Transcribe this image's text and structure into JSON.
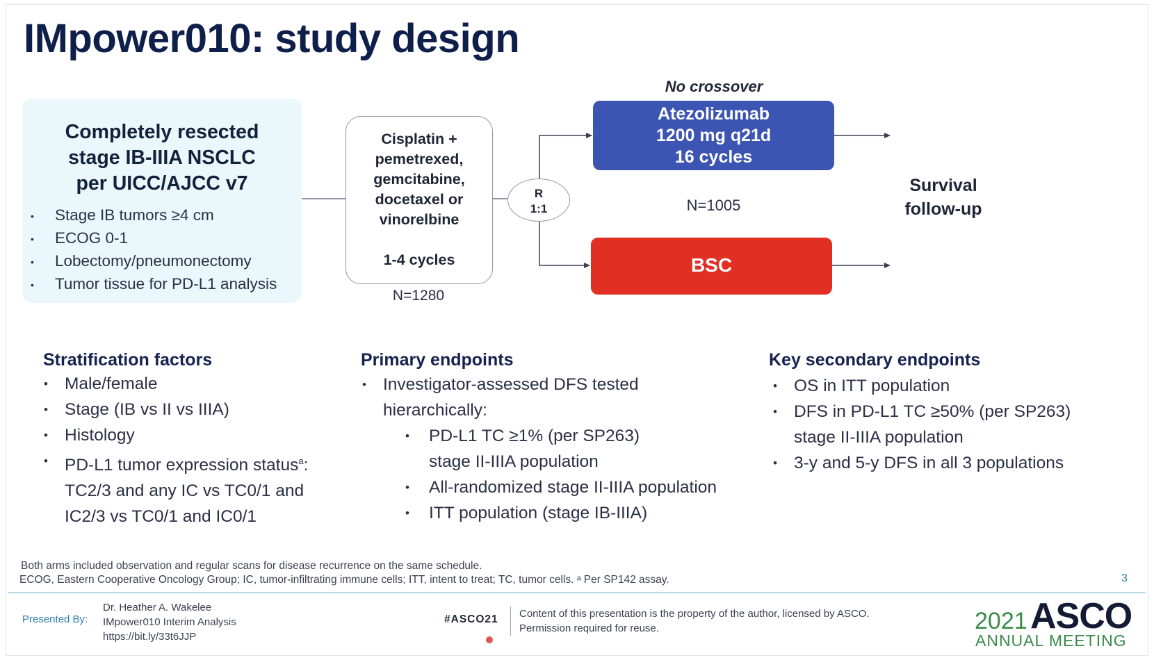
{
  "title": "IMpower010: study design",
  "population": {
    "title": [
      "Completely resected",
      "stage IB-IIIA NSCLC",
      "per UICC/AJCC v7"
    ],
    "criteria": [
      "Stage IB tumors ≥4 cm",
      "ECOG 0-1",
      "Lobectomy/pneumonectomy",
      "Tumor tissue for PD-L1 analysis"
    ]
  },
  "chemo": {
    "lines": [
      "Cisplatin +",
      "pemetrexed,",
      "gemcitabine,",
      "docetaxel or",
      "vinorelbine"
    ],
    "cycles": "1-4 cycles",
    "n": "N=1280"
  },
  "randomization": {
    "label": "R",
    "ratio": "1:1"
  },
  "arms": {
    "note": "No crossover",
    "atezo": [
      "Atezolizumab",
      "1200 mg q21d",
      "16 cycles"
    ],
    "n": "N=1005",
    "bsc": "BSC"
  },
  "survival": [
    "Survival",
    "follow-up"
  ],
  "stratification": {
    "heading": "Stratification factors",
    "items": [
      "Male/female",
      "Stage (IB vs II vs IIIA)",
      "Histology"
    ],
    "pdl1_lines": [
      "PD-L1 tumor expression status",
      "TC2/3 and any IC vs TC0/1 and",
      "IC2/3 vs TC0/1 and IC0/1"
    ],
    "pdl1_sup": "a",
    "pdl1_colon": ":"
  },
  "primary": {
    "heading": "Primary endpoints",
    "main_lines": [
      "Investigator-assessed DFS tested",
      "hierarchically:"
    ],
    "sub_lines": [
      [
        "PD-L1 TC ≥1% (per SP263)",
        "stage II-IIIA population"
      ],
      [
        "All-randomized stage II-IIIA population"
      ],
      [
        "ITT population (stage IB-IIIA)"
      ]
    ]
  },
  "secondary": {
    "heading": "Key secondary endpoints",
    "items": [
      [
        "OS in ITT population"
      ],
      [
        "DFS in PD-L1 TC ≥50% (per SP263)",
        "stage II-IIIA population"
      ],
      [
        "3-y and 5-y DFS in all 3 populations"
      ]
    ]
  },
  "footnotes": [
    "Both arms included observation and regular scans for disease recurrence on the same schedule.",
    "ECOG, Eastern Cooperative Oncology Group; IC, tumor-infiltrating immune cells; ITT, intent to treat; TC, tumor cells. ᵃ Per SP142 assay."
  ],
  "page_number": "3",
  "footer": {
    "presented_by": "Presented By:",
    "presenter": [
      "Dr. Heather A. Wakelee",
      "IMpower010 Interim Analysis",
      "https://bit.ly/33t6JJP"
    ],
    "hashtag": "#ASCO21",
    "legal": [
      "Content of this presentation is the property of the author, licensed by ASCO.",
      "Permission required for reuse."
    ],
    "logo_year": "2021",
    "logo_word": "ASCO",
    "logo_sub": "ANNUAL MEETING"
  },
  "colors": {
    "atezo_arm": "#3d55b2",
    "bsc_arm": "#e22f24",
    "population_fill": "#eaf8fb",
    "title_navy": "#0f1f4b",
    "asco_green": "#3a8a4a",
    "footer_blue": "#2f7fae"
  }
}
